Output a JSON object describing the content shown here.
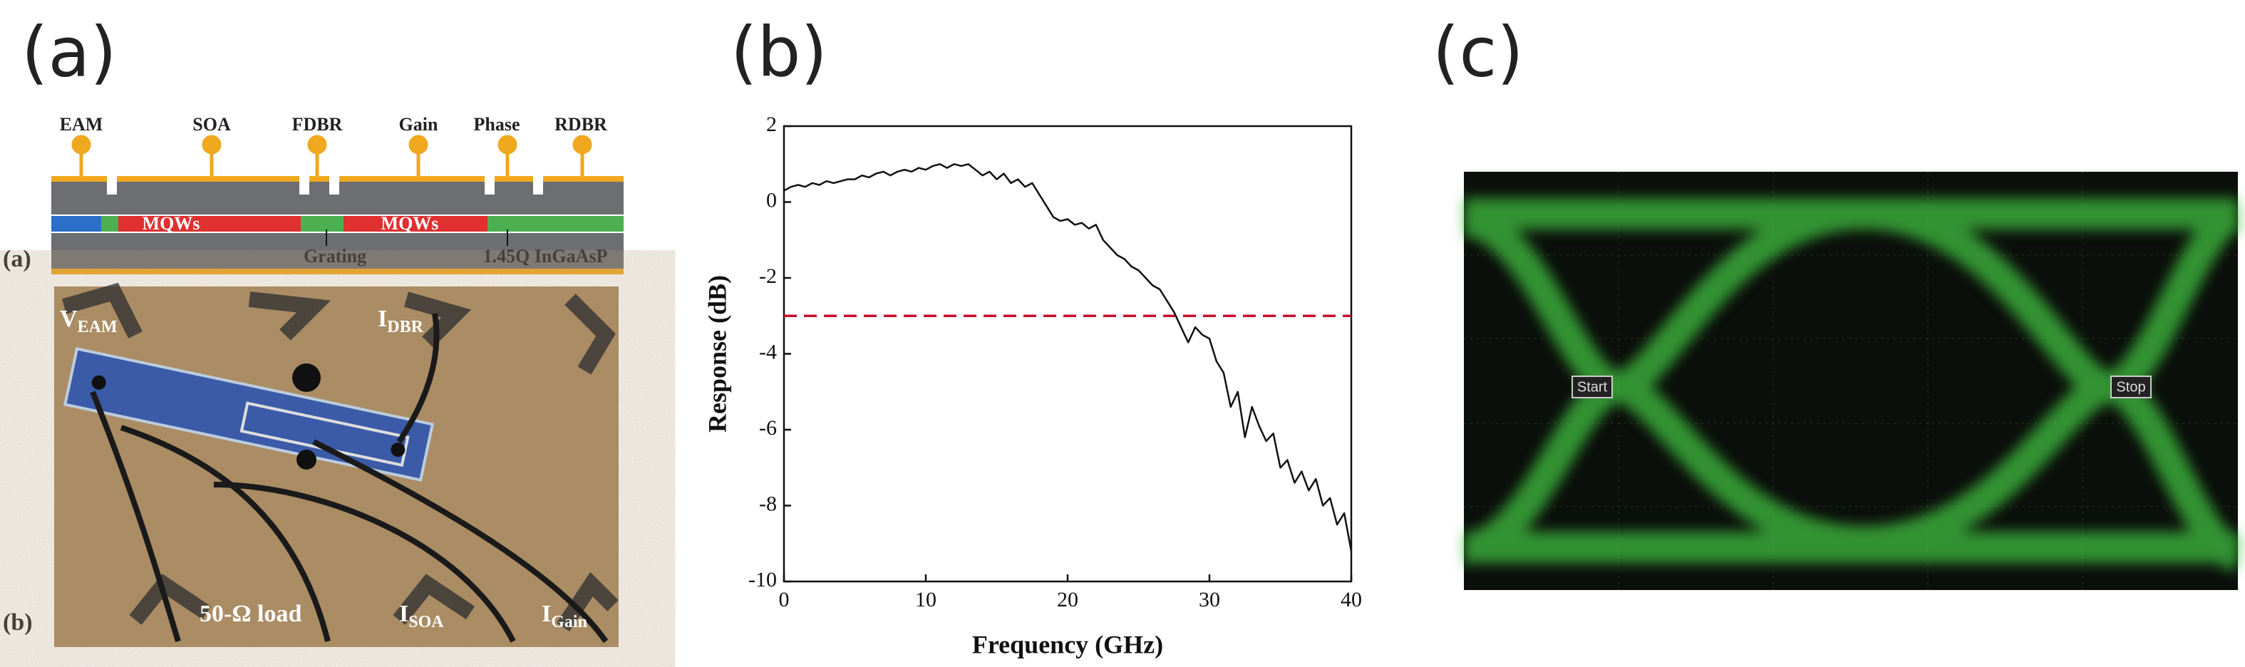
{
  "panel_labels": [
    "(a)",
    "(b)",
    "(c)"
  ],
  "diagram": {
    "sublabels": [
      "(a)",
      "(b)"
    ],
    "sections": [
      "EAM",
      "SOA",
      "FDBR",
      "Gain",
      "Phase",
      "RDBR"
    ],
    "layer_labels": [
      "MQWs",
      "MQWs",
      "Grating",
      "1.45Q InGaAsP"
    ]
  },
  "photo": {
    "labels": [
      {
        "main": "V",
        "sub": "EAM"
      },
      {
        "main": "I",
        "sub": "DBR"
      },
      {
        "main": "50-Ω load",
        "sub": ""
      },
      {
        "main": "I",
        "sub": "SOA"
      },
      {
        "main": "I",
        "sub": "Gain"
      }
    ]
  },
  "chart_data": {
    "type": "line",
    "x_label": "Frequency (GHz)",
    "y_label": "Response (dB)",
    "x": [
      0,
      0.5,
      1,
      1.5,
      2,
      2.5,
      3,
      3.5,
      4,
      4.5,
      5,
      5.5,
      6,
      6.5,
      7,
      7.5,
      8,
      8.5,
      9,
      9.5,
      10,
      10.5,
      11,
      11.5,
      12,
      12.5,
      13,
      13.5,
      14,
      14.5,
      15,
      15.5,
      16,
      16.5,
      17,
      17.5,
      18,
      18.5,
      19,
      19.5,
      20,
      20.5,
      21,
      21.5,
      22,
      22.5,
      23,
      23.5,
      24,
      24.5,
      25,
      25.5,
      26,
      26.5,
      27,
      27.5,
      28,
      28.5,
      29,
      29.5,
      30,
      30.5,
      31,
      31.5,
      32,
      32.5,
      33,
      33.5,
      34,
      34.5,
      35,
      35.5,
      36,
      36.5,
      37,
      37.5,
      38,
      38.5,
      39,
      39.5,
      40
    ],
    "series": [
      {
        "color": "#111111",
        "values": [
          0.3,
          0.4,
          0.45,
          0.4,
          0.5,
          0.45,
          0.55,
          0.5,
          0.55,
          0.6,
          0.6,
          0.7,
          0.65,
          0.75,
          0.8,
          0.7,
          0.8,
          0.85,
          0.8,
          0.9,
          0.85,
          0.95,
          1.0,
          0.9,
          1.0,
          0.95,
          1.0,
          0.85,
          0.7,
          0.8,
          0.6,
          0.75,
          0.5,
          0.6,
          0.4,
          0.5,
          0.2,
          -0.1,
          -0.4,
          -0.5,
          -0.45,
          -0.6,
          -0.55,
          -0.7,
          -0.6,
          -1.0,
          -1.2,
          -1.4,
          -1.5,
          -1.7,
          -1.8,
          -2.0,
          -2.2,
          -2.3,
          -2.6,
          -2.9,
          -3.3,
          -3.7,
          -3.3,
          -3.5,
          -3.6,
          -4.2,
          -4.5,
          -5.4,
          -5.0,
          -6.2,
          -5.4,
          -5.9,
          -6.3,
          -6.1,
          -7.0,
          -6.8,
          -7.4,
          -7.1,
          -7.6,
          -7.3,
          -8.0,
          -7.8,
          -8.5,
          -8.2,
          -9.2
        ]
      }
    ],
    "reference_line": {
      "value": -3,
      "color": "#c8102e"
    },
    "xlim": [
      0,
      40
    ],
    "xticks": [
      0,
      10,
      20,
      30,
      40
    ],
    "ylim": [
      -10,
      2
    ],
    "yticks": [
      -10,
      -8,
      -6,
      -4,
      -2,
      0,
      2
    ]
  },
  "eye": {
    "markers": [
      "Start",
      "Stop"
    ]
  }
}
